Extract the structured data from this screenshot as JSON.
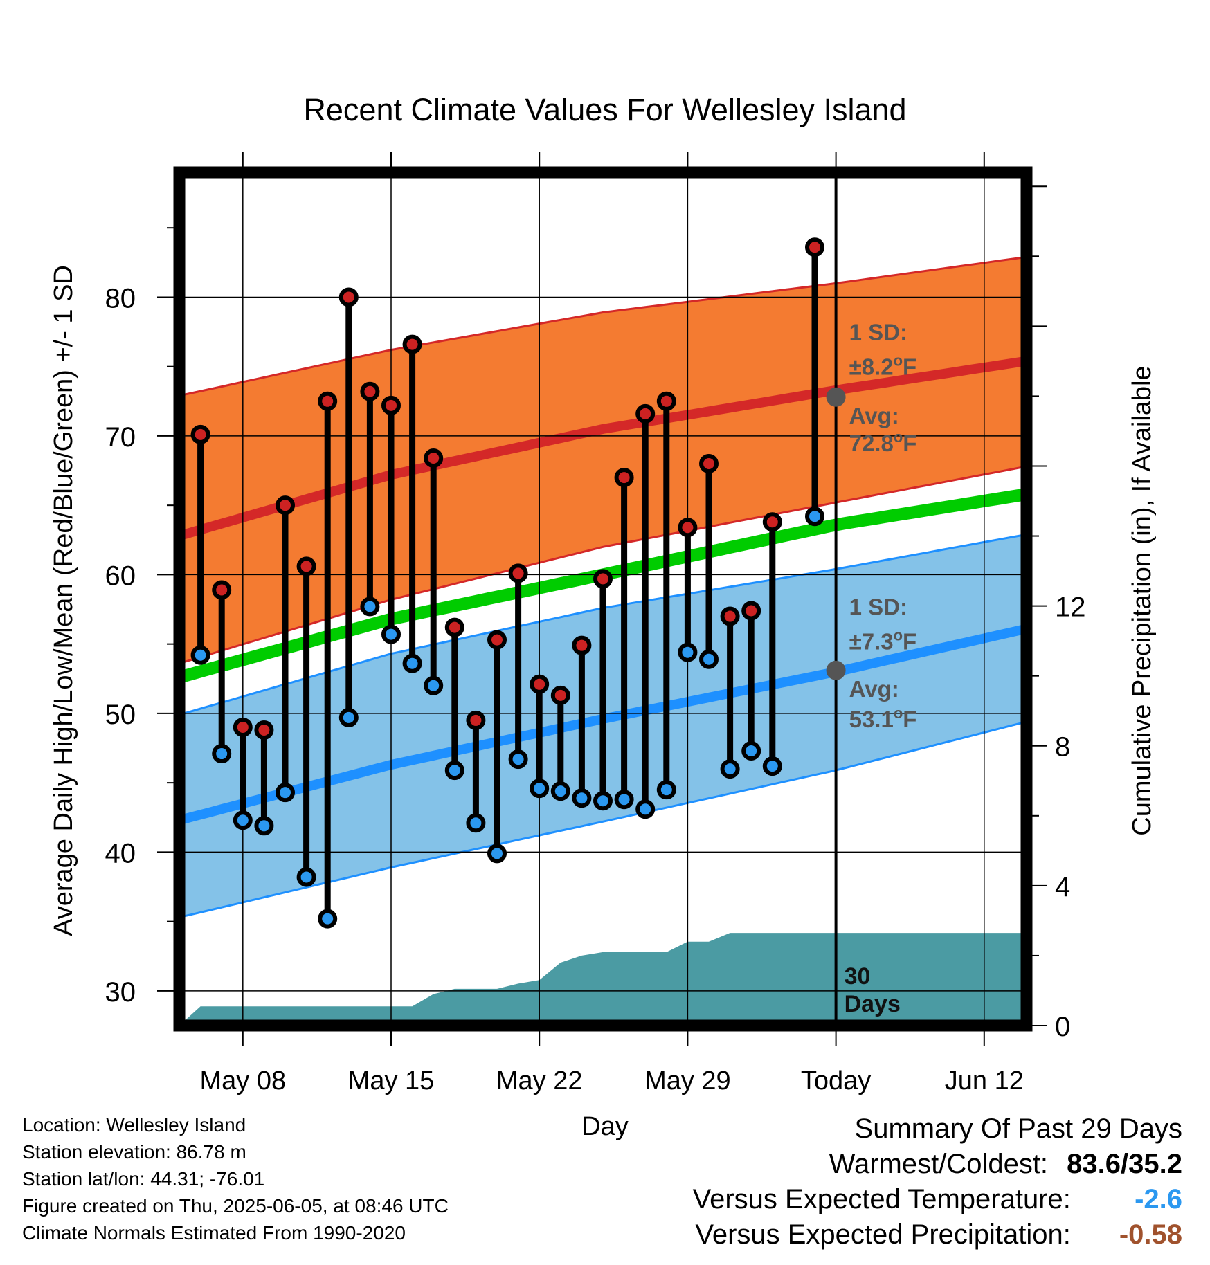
{
  "chart_data": {
    "type": "line",
    "title": "Recent Climate Values For Wellesley Island",
    "xlabel": "Day",
    "ylabel_left": "Average Daily High/Low/Mean (Red/Blue/Green) +/- 1 SD",
    "ylabel_right": "Cumulative Precipitation (in), If Available",
    "x_range": [
      "2025-05-05",
      "2025-06-14"
    ],
    "x_ticks": [
      {
        "date": "2025-05-08",
        "label": "May 08"
      },
      {
        "date": "2025-05-15",
        "label": "May 15"
      },
      {
        "date": "2025-05-22",
        "label": "May 22"
      },
      {
        "date": "2025-05-29",
        "label": "May 29"
      },
      {
        "date": "2025-06-05",
        "label": "Today"
      },
      {
        "date": "2025-06-12",
        "label": "Jun 12"
      }
    ],
    "ylim_left": [
      27.5,
      89
    ],
    "yticks_left": [
      30,
      40,
      50,
      60,
      70,
      80
    ],
    "ylim_right": [
      0,
      24.4
    ],
    "yticks_right": [
      0,
      4,
      8,
      12
    ],
    "grid": true,
    "today": "2025-06-05",
    "daily_high": [
      [
        "2025-05-06",
        70.1
      ],
      [
        "2025-05-07",
        58.9
      ],
      [
        "2025-05-08",
        49.0
      ],
      [
        "2025-05-09",
        48.8
      ],
      [
        "2025-05-10",
        65.0
      ],
      [
        "2025-05-11",
        60.6
      ],
      [
        "2025-05-12",
        72.5
      ],
      [
        "2025-05-13",
        80.0
      ],
      [
        "2025-05-14",
        73.2
      ],
      [
        "2025-05-15",
        72.2
      ],
      [
        "2025-05-16",
        76.6
      ],
      [
        "2025-05-17",
        68.4
      ],
      [
        "2025-05-18",
        56.2
      ],
      [
        "2025-05-19",
        49.5
      ],
      [
        "2025-05-20",
        55.3
      ],
      [
        "2025-05-21",
        60.1
      ],
      [
        "2025-05-22",
        52.1
      ],
      [
        "2025-05-23",
        51.3
      ],
      [
        "2025-05-24",
        54.9
      ],
      [
        "2025-05-25",
        59.7
      ],
      [
        "2025-05-26",
        67.0
      ],
      [
        "2025-05-27",
        71.6
      ],
      [
        "2025-05-28",
        72.5
      ],
      [
        "2025-05-29",
        63.4
      ],
      [
        "2025-05-30",
        68.0
      ],
      [
        "2025-05-31",
        57.0
      ],
      [
        "2025-06-01",
        57.4
      ],
      [
        "2025-06-02",
        63.8
      ],
      [
        "2025-06-04",
        83.6
      ]
    ],
    "daily_low": [
      [
        "2025-05-06",
        54.2
      ],
      [
        "2025-05-07",
        47.1
      ],
      [
        "2025-05-08",
        42.3
      ],
      [
        "2025-05-09",
        41.9
      ],
      [
        "2025-05-10",
        44.3
      ],
      [
        "2025-05-11",
        38.2
      ],
      [
        "2025-05-12",
        35.2
      ],
      [
        "2025-05-13",
        49.7
      ],
      [
        "2025-05-14",
        57.7
      ],
      [
        "2025-05-15",
        55.7
      ],
      [
        "2025-05-16",
        53.6
      ],
      [
        "2025-05-17",
        52.0
      ],
      [
        "2025-05-18",
        45.9
      ],
      [
        "2025-05-19",
        42.1
      ],
      [
        "2025-05-20",
        39.9
      ],
      [
        "2025-05-21",
        46.7
      ],
      [
        "2025-05-22",
        44.6
      ],
      [
        "2025-05-23",
        44.4
      ],
      [
        "2025-05-24",
        43.9
      ],
      [
        "2025-05-25",
        43.7
      ],
      [
        "2025-05-26",
        43.8
      ],
      [
        "2025-05-27",
        43.1
      ],
      [
        "2025-05-28",
        44.5
      ],
      [
        "2025-05-29",
        54.4
      ],
      [
        "2025-05-30",
        53.9
      ],
      [
        "2025-05-31",
        46.0
      ],
      [
        "2025-06-01",
        47.3
      ],
      [
        "2025-06-02",
        46.2
      ],
      [
        "2025-06-04",
        64.2
      ]
    ],
    "normal_high_band": {
      "dates": [
        "2025-05-05",
        "2025-05-15",
        "2025-05-25",
        "2025-06-05",
        "2025-06-14"
      ],
      "mean": [
        62.8,
        67.2,
        70.5,
        73.3,
        75.4
      ],
      "upper": [
        72.9,
        76.2,
        78.9,
        81.0,
        82.9
      ],
      "lower": [
        53.6,
        58.2,
        62.0,
        65.2,
        67.8
      ]
    },
    "normal_low_band": {
      "dates": [
        "2025-05-05",
        "2025-05-15",
        "2025-05-25",
        "2025-06-05",
        "2025-06-14"
      ],
      "mean": [
        42.3,
        46.3,
        49.6,
        53.0,
        56.1
      ],
      "upper": [
        49.9,
        54.3,
        57.6,
        60.4,
        62.9
      ],
      "lower": [
        35.3,
        38.9,
        42.2,
        45.9,
        49.4
      ]
    },
    "normal_mean_line": {
      "dates": [
        "2025-05-05",
        "2025-05-15",
        "2025-05-25",
        "2025-06-05",
        "2025-06-14"
      ],
      "values": [
        52.6,
        56.8,
        60.0,
        63.6,
        65.8
      ]
    },
    "cumulative_precip": [
      [
        "2025-05-05",
        0.0
      ],
      [
        "2025-05-06",
        0.55
      ],
      [
        "2025-05-16",
        0.55
      ],
      [
        "2025-05-17",
        0.9
      ],
      [
        "2025-05-18",
        1.05
      ],
      [
        "2025-05-20",
        1.05
      ],
      [
        "2025-05-21",
        1.2
      ],
      [
        "2025-05-22",
        1.3
      ],
      [
        "2025-05-23",
        1.8
      ],
      [
        "2025-05-24",
        2.0
      ],
      [
        "2025-05-25",
        2.1
      ],
      [
        "2025-05-28",
        2.1
      ],
      [
        "2025-05-29",
        2.4
      ],
      [
        "2025-05-30",
        2.4
      ],
      [
        "2025-05-31",
        2.65
      ],
      [
        "2025-06-14",
        2.65
      ]
    ],
    "annotations": {
      "high_sd": {
        "l1": "1 SD:",
        "l2": "±8.2",
        "deg": "o",
        "unit": "F",
        "date": "2025-06-05",
        "y1": 76.9,
        "y2": 74.4
      },
      "high_avg": {
        "l1": "Avg:",
        "l2": "72.8",
        "deg": "o",
        "unit": "F",
        "date": "2025-06-05",
        "y1": 70.9,
        "y2": 68.9,
        "value": 72.8
      },
      "low_sd": {
        "l1": "1 SD:",
        "l2": "±7.3",
        "deg": "o",
        "unit": "F",
        "date": "2025-06-05",
        "y1": 57.1,
        "y2": 54.6
      },
      "low_avg": {
        "l1": "Avg:",
        "l2": "53.1",
        "deg": "o",
        "unit": "F",
        "date": "2025-06-05",
        "y1": 51.2,
        "y2": 49.0,
        "value": 53.1
      },
      "days": {
        "l1": "30",
        "l2": "Days",
        "date": "2025-06-05"
      }
    },
    "colors": {
      "high_band": "#f47b31",
      "high_line": "#d42828",
      "low_band": "#84c2e8",
      "low_line": "#1e90ff",
      "mean_line": "#00cc00",
      "precip": "#4b9ba3",
      "high_dot": "#cc2222",
      "low_dot": "#2b98f0",
      "annotation": "#555555"
    }
  },
  "info": {
    "location": "Location: Wellesley Island",
    "elevation": "Station elevation: 86.78 m",
    "latlon": "Station lat/lon: 44.31; -76.01",
    "created": "Figure created on Thu, 2025-06-05, at 08:46 UTC",
    "normals": "Climate Normals Estimated From 1990-2020"
  },
  "summary": {
    "title": "Summary Of Past 29 Days",
    "warmest_label": "Warmest/Coldest:",
    "warmest_value": "83.6/35.2",
    "temp_label": "Versus Expected Temperature:",
    "temp_value": "-2.6",
    "temp_color": "#2b98f0",
    "precip_label": "Versus Expected Precipitation:",
    "precip_value": "-0.58",
    "precip_color": "#a0522d"
  }
}
